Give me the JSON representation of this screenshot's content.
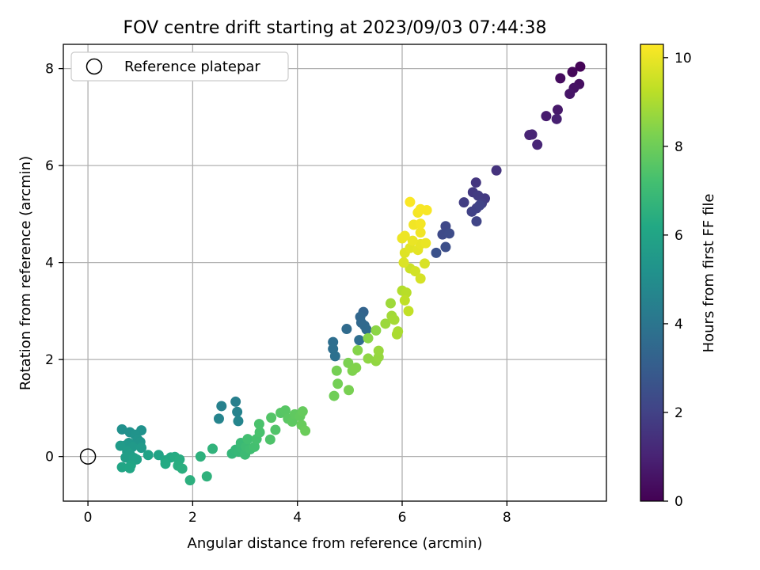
{
  "chart_data": {
    "type": "scatter",
    "title": "FOV centre drift starting at 2023/09/03 07:44:38",
    "xlabel": "Angular distance from reference (arcmin)",
    "ylabel": "Rotation from reference (arcmin)",
    "xlim": [
      -0.47,
      9.9
    ],
    "ylim": [
      -0.92,
      8.5
    ],
    "xticks": [
      0,
      2,
      4,
      6,
      8
    ],
    "yticks": [
      0,
      2,
      4,
      6,
      8
    ],
    "grid": true,
    "legend": {
      "placement": "top-left",
      "entries": [
        "Reference platepar"
      ]
    },
    "reference_point": {
      "x": 0,
      "y": 0,
      "label": "Reference platepar"
    },
    "colorbar": {
      "label": "Hours from first FF file",
      "colormap": "viridis",
      "range": [
        0,
        10.3
      ],
      "ticks": [
        0,
        2,
        4,
        6,
        8,
        10
      ]
    },
    "series": [
      {
        "points": [
          {
            "x": 9.4,
            "y": 8.04,
            "c": 0.1
          },
          {
            "x": 9.25,
            "y": 7.93,
            "c": 0.2
          },
          {
            "x": 9.02,
            "y": 7.8,
            "c": 0.3
          },
          {
            "x": 9.38,
            "y": 7.68,
            "c": 0.4
          },
          {
            "x": 9.28,
            "y": 7.6,
            "c": 0.5
          },
          {
            "x": 9.2,
            "y": 7.48,
            "c": 0.6
          },
          {
            "x": 8.97,
            "y": 7.15,
            "c": 0.7
          },
          {
            "x": 8.75,
            "y": 7.02,
            "c": 0.8
          },
          {
            "x": 8.95,
            "y": 6.96,
            "c": 0.9
          },
          {
            "x": 8.43,
            "y": 6.63,
            "c": 1.0
          },
          {
            "x": 8.48,
            "y": 6.64,
            "c": 1.05
          },
          {
            "x": 8.58,
            "y": 6.43,
            "c": 1.1
          },
          {
            "x": 7.8,
            "y": 5.9,
            "c": 1.5
          },
          {
            "x": 7.41,
            "y": 5.65,
            "c": 1.6
          },
          {
            "x": 7.35,
            "y": 5.45,
            "c": 1.7
          },
          {
            "x": 7.58,
            "y": 5.32,
            "c": 1.75
          },
          {
            "x": 7.45,
            "y": 5.38,
            "c": 1.8
          },
          {
            "x": 7.18,
            "y": 5.24,
            "c": 1.85
          },
          {
            "x": 7.52,
            "y": 5.22,
            "c": 1.9
          },
          {
            "x": 7.42,
            "y": 5.12,
            "c": 1.95
          },
          {
            "x": 7.33,
            "y": 5.05,
            "c": 2.0
          },
          {
            "x": 7.48,
            "y": 5.18,
            "c": 2.05
          },
          {
            "x": 7.42,
            "y": 4.85,
            "c": 2.1
          },
          {
            "x": 6.83,
            "y": 4.75,
            "c": 2.2
          },
          {
            "x": 6.77,
            "y": 4.58,
            "c": 2.3
          },
          {
            "x": 6.9,
            "y": 4.6,
            "c": 2.35
          },
          {
            "x": 6.83,
            "y": 4.32,
            "c": 2.45
          },
          {
            "x": 6.65,
            "y": 4.2,
            "c": 2.55
          },
          {
            "x": 5.26,
            "y": 2.98,
            "c": 3.3
          },
          {
            "x": 5.2,
            "y": 2.88,
            "c": 3.4
          },
          {
            "x": 5.22,
            "y": 2.76,
            "c": 3.45
          },
          {
            "x": 5.28,
            "y": 2.7,
            "c": 3.5
          },
          {
            "x": 5.32,
            "y": 2.62,
            "c": 3.55
          },
          {
            "x": 4.94,
            "y": 2.63,
            "c": 3.6
          },
          {
            "x": 5.18,
            "y": 2.4,
            "c": 3.65
          },
          {
            "x": 4.68,
            "y": 2.36,
            "c": 3.7
          },
          {
            "x": 4.68,
            "y": 2.22,
            "c": 3.75
          },
          {
            "x": 4.72,
            "y": 2.07,
            "c": 3.8
          },
          {
            "x": 2.82,
            "y": 1.13,
            "c": 4.4
          },
          {
            "x": 2.55,
            "y": 1.04,
            "c": 4.5
          },
          {
            "x": 2.85,
            "y": 0.92,
            "c": 4.55
          },
          {
            "x": 2.5,
            "y": 0.78,
            "c": 4.6
          },
          {
            "x": 2.87,
            "y": 0.73,
            "c": 4.65
          },
          {
            "x": 0.65,
            "y": 0.56,
            "c": 5.1
          },
          {
            "x": 0.8,
            "y": 0.5,
            "c": 5.15
          },
          {
            "x": 1.02,
            "y": 0.54,
            "c": 5.2
          },
          {
            "x": 0.9,
            "y": 0.45,
            "c": 5.25
          },
          {
            "x": 0.95,
            "y": 0.35,
            "c": 5.3
          },
          {
            "x": 1.0,
            "y": 0.3,
            "c": 5.35
          },
          {
            "x": 0.78,
            "y": 0.28,
            "c": 5.4
          },
          {
            "x": 0.7,
            "y": 0.22,
            "c": 5.45
          },
          {
            "x": 0.85,
            "y": 0.2,
            "c": 5.5
          },
          {
            "x": 1.02,
            "y": 0.18,
            "c": 5.55
          },
          {
            "x": 0.62,
            "y": 0.22,
            "c": 5.6
          },
          {
            "x": 0.75,
            "y": 0.1,
            "c": 5.65
          },
          {
            "x": 0.8,
            "y": 0.05,
            "c": 5.7
          },
          {
            "x": 0.72,
            "y": -0.02,
            "c": 5.75
          },
          {
            "x": 0.88,
            "y": -0.03,
            "c": 5.8
          },
          {
            "x": 0.93,
            "y": -0.06,
            "c": 5.85
          },
          {
            "x": 1.15,
            "y": 0.03,
            "c": 5.9
          },
          {
            "x": 1.35,
            "y": 0.03,
            "c": 5.95
          },
          {
            "x": 0.82,
            "y": -0.18,
            "c": 6.0
          },
          {
            "x": 0.65,
            "y": -0.22,
            "c": 6.05
          },
          {
            "x": 0.8,
            "y": -0.24,
            "c": 6.1
          },
          {
            "x": 1.48,
            "y": -0.08,
            "c": 6.15
          },
          {
            "x": 1.58,
            "y": -0.02,
            "c": 6.2
          },
          {
            "x": 1.48,
            "y": -0.15,
            "c": 6.25
          },
          {
            "x": 1.66,
            "y": -0.01,
            "c": 6.3
          },
          {
            "x": 1.75,
            "y": -0.06,
            "c": 6.35
          },
          {
            "x": 1.72,
            "y": -0.19,
            "c": 6.4
          },
          {
            "x": 1.8,
            "y": -0.25,
            "c": 6.45
          },
          {
            "x": 1.95,
            "y": -0.49,
            "c": 6.5
          },
          {
            "x": 2.15,
            "y": 0.0,
            "c": 6.55
          },
          {
            "x": 2.27,
            "y": -0.41,
            "c": 6.6
          },
          {
            "x": 2.38,
            "y": 0.16,
            "c": 6.65
          },
          {
            "x": 2.75,
            "y": 0.06,
            "c": 6.75
          },
          {
            "x": 2.82,
            "y": 0.14,
            "c": 6.8
          },
          {
            "x": 2.88,
            "y": 0.1,
            "c": 6.85
          },
          {
            "x": 2.95,
            "y": 0.16,
            "c": 6.9
          },
          {
            "x": 2.92,
            "y": 0.28,
            "c": 6.95
          },
          {
            "x": 3.0,
            "y": 0.04,
            "c": 7.0
          },
          {
            "x": 3.02,
            "y": 0.2,
            "c": 7.05
          },
          {
            "x": 3.1,
            "y": 0.15,
            "c": 7.1
          },
          {
            "x": 3.05,
            "y": 0.36,
            "c": 7.15
          },
          {
            "x": 3.18,
            "y": 0.2,
            "c": 7.2
          },
          {
            "x": 3.22,
            "y": 0.36,
            "c": 7.25
          },
          {
            "x": 3.28,
            "y": 0.5,
            "c": 7.3
          },
          {
            "x": 3.27,
            "y": 0.67,
            "c": 7.35
          },
          {
            "x": 3.48,
            "y": 0.35,
            "c": 7.4
          },
          {
            "x": 3.58,
            "y": 0.55,
            "c": 7.45
          },
          {
            "x": 3.5,
            "y": 0.8,
            "c": 7.5
          },
          {
            "x": 3.68,
            "y": 0.9,
            "c": 7.55
          },
          {
            "x": 3.77,
            "y": 0.95,
            "c": 7.6
          },
          {
            "x": 3.82,
            "y": 0.78,
            "c": 7.65
          },
          {
            "x": 3.9,
            "y": 0.72,
            "c": 7.7
          },
          {
            "x": 3.95,
            "y": 0.87,
            "c": 7.75
          },
          {
            "x": 4.05,
            "y": 0.83,
            "c": 7.8
          },
          {
            "x": 4.1,
            "y": 0.93,
            "c": 7.85
          },
          {
            "x": 4.08,
            "y": 0.65,
            "c": 7.9
          },
          {
            "x": 4.15,
            "y": 0.53,
            "c": 7.95
          },
          {
            "x": 4.7,
            "y": 1.25,
            "c": 8.05
          },
          {
            "x": 4.77,
            "y": 1.5,
            "c": 8.1
          },
          {
            "x": 4.75,
            "y": 1.77,
            "c": 8.15
          },
          {
            "x": 4.98,
            "y": 1.37,
            "c": 8.2
          },
          {
            "x": 4.97,
            "y": 1.93,
            "c": 8.25
          },
          {
            "x": 5.05,
            "y": 1.77,
            "c": 8.3
          },
          {
            "x": 5.12,
            "y": 1.83,
            "c": 8.35
          },
          {
            "x": 5.15,
            "y": 2.19,
            "c": 8.4
          },
          {
            "x": 5.35,
            "y": 2.44,
            "c": 8.45
          },
          {
            "x": 5.5,
            "y": 2.6,
            "c": 8.5
          },
          {
            "x": 5.35,
            "y": 2.02,
            "c": 8.55
          },
          {
            "x": 5.5,
            "y": 1.97,
            "c": 8.6
          },
          {
            "x": 5.55,
            "y": 2.05,
            "c": 8.65
          },
          {
            "x": 5.55,
            "y": 2.18,
            "c": 8.7
          },
          {
            "x": 5.68,
            "y": 2.74,
            "c": 8.75
          },
          {
            "x": 5.78,
            "y": 3.16,
            "c": 8.8
          },
          {
            "x": 5.8,
            "y": 2.9,
            "c": 8.85
          },
          {
            "x": 5.85,
            "y": 2.82,
            "c": 8.9
          },
          {
            "x": 5.92,
            "y": 2.58,
            "c": 8.95
          },
          {
            "x": 5.9,
            "y": 2.52,
            "c": 9.0
          },
          {
            "x": 6.0,
            "y": 3.42,
            "c": 9.1
          },
          {
            "x": 6.08,
            "y": 3.38,
            "c": 9.2
          },
          {
            "x": 6.05,
            "y": 3.22,
            "c": 9.3
          },
          {
            "x": 6.12,
            "y": 3.0,
            "c": 9.35
          },
          {
            "x": 6.15,
            "y": 3.88,
            "c": 9.5
          },
          {
            "x": 6.25,
            "y": 3.82,
            "c": 9.6
          },
          {
            "x": 6.35,
            "y": 3.67,
            "c": 9.65
          },
          {
            "x": 6.43,
            "y": 3.98,
            "c": 9.7
          },
          {
            "x": 6.03,
            "y": 4.0,
            "c": 9.75
          },
          {
            "x": 6.05,
            "y": 4.2,
            "c": 9.8
          },
          {
            "x": 6.15,
            "y": 4.3,
            "c": 9.85
          },
          {
            "x": 6.3,
            "y": 4.26,
            "c": 9.9
          },
          {
            "x": 6.35,
            "y": 4.38,
            "c": 9.95
          },
          {
            "x": 6.2,
            "y": 4.45,
            "c": 10.0
          },
          {
            "x": 6.45,
            "y": 4.4,
            "c": 10.0
          },
          {
            "x": 6.0,
            "y": 4.5,
            "c": 10.05
          },
          {
            "x": 6.05,
            "y": 4.55,
            "c": 10.05
          },
          {
            "x": 6.35,
            "y": 4.62,
            "c": 10.1
          },
          {
            "x": 6.22,
            "y": 4.78,
            "c": 10.1
          },
          {
            "x": 6.35,
            "y": 4.8,
            "c": 10.15
          },
          {
            "x": 6.3,
            "y": 5.03,
            "c": 10.15
          },
          {
            "x": 6.47,
            "y": 5.08,
            "c": 10.2
          },
          {
            "x": 6.35,
            "y": 5.1,
            "c": 10.2
          },
          {
            "x": 6.15,
            "y": 5.25,
            "c": 10.25
          }
        ]
      }
    ]
  }
}
